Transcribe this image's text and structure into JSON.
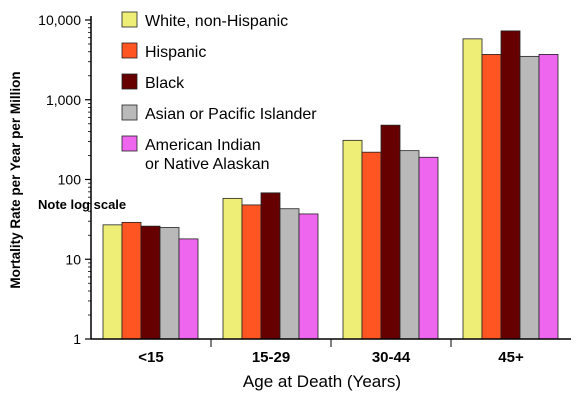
{
  "chart_data": {
    "type": "bar",
    "yscale": "log",
    "ylim": [
      1,
      10000
    ],
    "yticks": [
      "1",
      "10",
      "100",
      "1,000",
      "10,000"
    ],
    "ylabel": "Mortality Rate per Year per Million",
    "xlabel": "Age at Death (Years)",
    "categories": [
      "<15",
      "15-29",
      "30-44",
      "45+"
    ],
    "annotation": "Note log scale",
    "legend_position": "top-left",
    "grid": false,
    "series": [
      {
        "name": "White, non-Hispanic",
        "color": "#eeee77",
        "values": [
          27,
          58,
          310,
          5800
        ]
      },
      {
        "name": "Hispanic",
        "color": "#ff5522",
        "values": [
          29,
          48,
          220,
          3700
        ]
      },
      {
        "name": "Black",
        "color": "#660000",
        "values": [
          26,
          68,
          480,
          7300
        ]
      },
      {
        "name": "Asian or Pacific Islander",
        "color": "#b9b9b9",
        "values": [
          25,
          43,
          230,
          3500
        ]
      },
      {
        "name": "American Indian or Native Alaskan",
        "color": "#ee66ee",
        "values": [
          18,
          37,
          190,
          3700
        ]
      }
    ],
    "legend_lines": [
      [
        "White, non-Hispanic"
      ],
      [
        "Hispanic"
      ],
      [
        "Black"
      ],
      [
        "Asian or Pacific Islander"
      ],
      [
        "American Indian",
        "or Native Alaskan"
      ]
    ]
  }
}
